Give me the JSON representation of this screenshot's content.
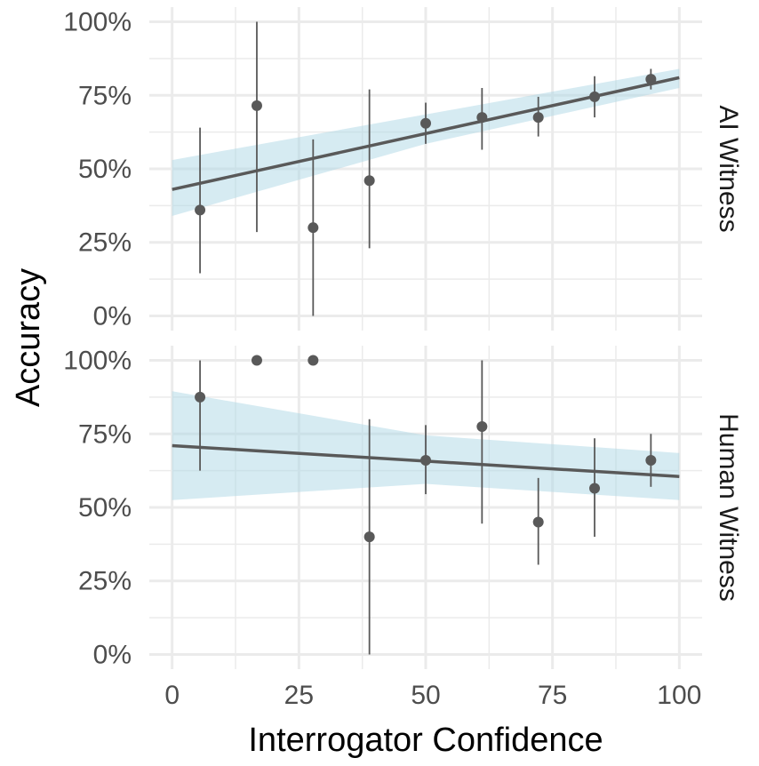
{
  "chart_data": {
    "type": "scatter",
    "xlabel": "Interrogator Confidence",
    "ylabel": "Accuracy",
    "xlim": [
      -4.5,
      104.5
    ],
    "ylim": [
      -0.05,
      1.05
    ],
    "x_ticks": [
      0,
      25,
      50,
      75,
      100
    ],
    "x_tick_labels": [
      "0",
      "25",
      "50",
      "75",
      "100"
    ],
    "y_ticks": [
      0,
      0.25,
      0.5,
      0.75,
      1
    ],
    "y_tick_labels": [
      "0%",
      "25%",
      "50%",
      "75%",
      "100%"
    ],
    "grid": true,
    "colors": {
      "point": "#595959",
      "errorbar": "#595959",
      "fit_line": "#595959",
      "ribbon": "#add8e6",
      "grid": "#ebebeb"
    },
    "panels": [
      {
        "strip_label": "AI Witness",
        "points": [
          {
            "x": 5.5,
            "y": 0.36,
            "ymin": 0.145,
            "ymax": 0.64
          },
          {
            "x": 16.7,
            "y": 0.715,
            "ymin": 0.285,
            "ymax": 1.0
          },
          {
            "x": 27.8,
            "y": 0.3,
            "ymin": 0.0,
            "ymax": 0.6
          },
          {
            "x": 38.9,
            "y": 0.46,
            "ymin": 0.23,
            "ymax": 0.77
          },
          {
            "x": 50.0,
            "y": 0.655,
            "ymin": 0.585,
            "ymax": 0.725
          },
          {
            "x": 61.1,
            "y": 0.675,
            "ymin": 0.565,
            "ymax": 0.775
          },
          {
            "x": 72.2,
            "y": 0.675,
            "ymin": 0.61,
            "ymax": 0.745
          },
          {
            "x": 83.3,
            "y": 0.745,
            "ymin": 0.675,
            "ymax": 0.815
          },
          {
            "x": 94.4,
            "y": 0.805,
            "ymin": 0.77,
            "ymax": 0.84
          }
        ],
        "fit": {
          "x": [
            0,
            100
          ],
          "y": [
            0.43,
            0.81
          ]
        },
        "ribbon": [
          {
            "x": 0,
            "lower": 0.34,
            "upper": 0.53
          },
          {
            "x": 50,
            "lower": 0.585,
            "upper": 0.685
          },
          {
            "x": 100,
            "lower": 0.775,
            "upper": 0.84
          }
        ]
      },
      {
        "strip_label": "Human Witness",
        "points": [
          {
            "x": 5.5,
            "y": 0.875,
            "ymin": 0.625,
            "ymax": 1.0
          },
          {
            "x": 16.7,
            "y": 1.0,
            "ymin": 1.0,
            "ymax": 1.0
          },
          {
            "x": 27.8,
            "y": 1.0,
            "ymin": 1.0,
            "ymax": 1.0
          },
          {
            "x": 38.9,
            "y": 0.4,
            "ymin": 0.0,
            "ymax": 0.8
          },
          {
            "x": 50.0,
            "y": 0.66,
            "ymin": 0.545,
            "ymax": 0.78
          },
          {
            "x": 61.1,
            "y": 0.775,
            "ymin": 0.445,
            "ymax": 1.0
          },
          {
            "x": 72.2,
            "y": 0.45,
            "ymin": 0.305,
            "ymax": 0.6
          },
          {
            "x": 83.3,
            "y": 0.565,
            "ymin": 0.4,
            "ymax": 0.735
          },
          {
            "x": 94.4,
            "y": 0.66,
            "ymin": 0.57,
            "ymax": 0.75
          }
        ],
        "fit": {
          "x": [
            0,
            100
          ],
          "y": [
            0.71,
            0.605
          ]
        },
        "ribbon": [
          {
            "x": 0,
            "lower": 0.525,
            "upper": 0.895
          },
          {
            "x": 50,
            "lower": 0.58,
            "upper": 0.745
          },
          {
            "x": 100,
            "lower": 0.525,
            "upper": 0.685
          }
        ]
      }
    ]
  }
}
